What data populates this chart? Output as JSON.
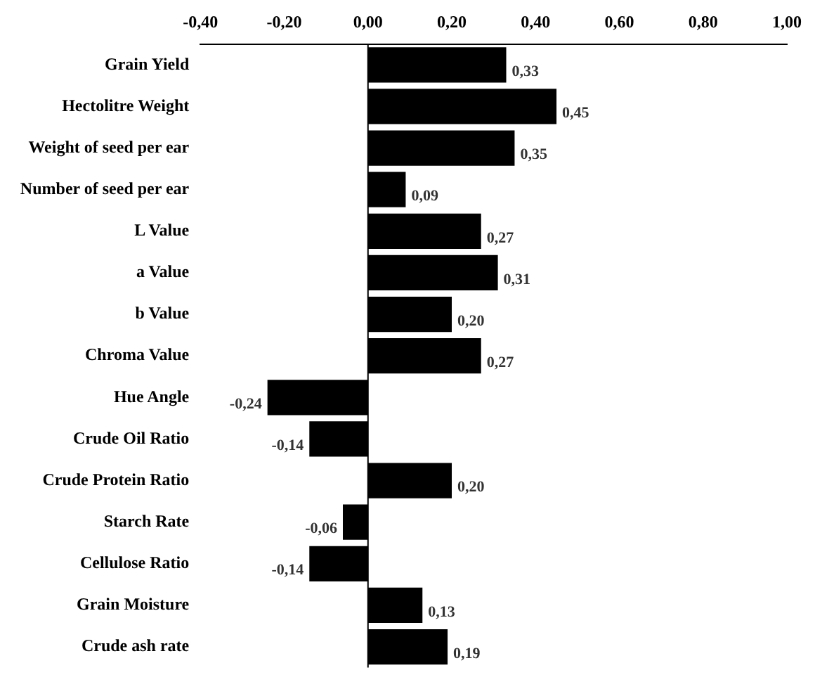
{
  "chart_data": {
    "type": "bar",
    "orientation": "horizontal",
    "categories": [
      "Grain Yield",
      "Hectolitre Weight",
      "Weight of seed per ear",
      "Number of seed per ear",
      "L Value",
      "a Value",
      "b Value",
      "Chroma Value",
      "Hue Angle",
      "Crude Oil Ratio",
      "Crude Protein Ratio",
      "Starch Rate",
      "Cellulose Ratio",
      "Grain Moisture",
      "Crude ash rate"
    ],
    "values": [
      0.33,
      0.45,
      0.35,
      0.09,
      0.27,
      0.31,
      0.2,
      0.27,
      -0.24,
      -0.14,
      0.2,
      -0.06,
      -0.14,
      0.13,
      0.19
    ],
    "value_labels": [
      "0,33",
      "0,45",
      "0,35",
      "0,09",
      "0,27",
      "0,31",
      "0,20",
      "0,27",
      "-0,24",
      "-0,14",
      "0,20",
      "-0,06",
      "-0,14",
      "0,13",
      "0,19"
    ],
    "color": "#000000",
    "xlim": [
      -0.4,
      1.0
    ],
    "xticks": [
      {
        "value": -0.4,
        "label": "-0,40"
      },
      {
        "value": -0.2,
        "label": "-0,20"
      },
      {
        "value": 0,
        "label": "0,00"
      },
      {
        "value": 0.2,
        "label": "0,20"
      },
      {
        "value": 0.4,
        "label": "0,40"
      },
      {
        "value": 0.6,
        "label": "0,60"
      },
      {
        "value": 0.8,
        "label": "0,80"
      },
      {
        "value": 1.0,
        "label": "1,00"
      }
    ],
    "ref_lines": [
      {
        "axis": "x",
        "value": 0,
        "color": "#000000"
      }
    ],
    "grid": false,
    "legend": false
  }
}
